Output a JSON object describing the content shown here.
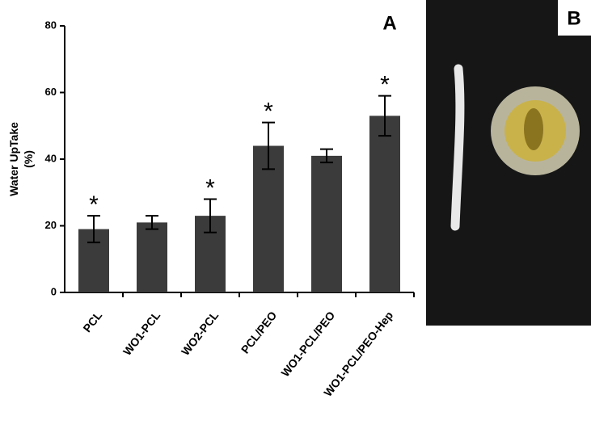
{
  "chart_data": {
    "type": "bar",
    "panel_label": "A",
    "ylabel": [
      "Water UpTake",
      "(%)"
    ],
    "categories": [
      "PCL",
      "WO1-PCL",
      "WO2-PCL",
      "PCL/PEO",
      "WO1-PCL/PEO",
      "WO1-PCL/PEO-Hep"
    ],
    "values": [
      19,
      21,
      23,
      44,
      41,
      53
    ],
    "errors": [
      4,
      2,
      5,
      7,
      2,
      6
    ],
    "significance": [
      "*",
      null,
      "*",
      "*",
      null,
      "*"
    ],
    "color": "#3b3b3b",
    "ylim": [
      0,
      80
    ],
    "yticks": [
      0,
      20,
      40,
      60,
      80
    ]
  },
  "photo_panel": {
    "label": "B"
  }
}
